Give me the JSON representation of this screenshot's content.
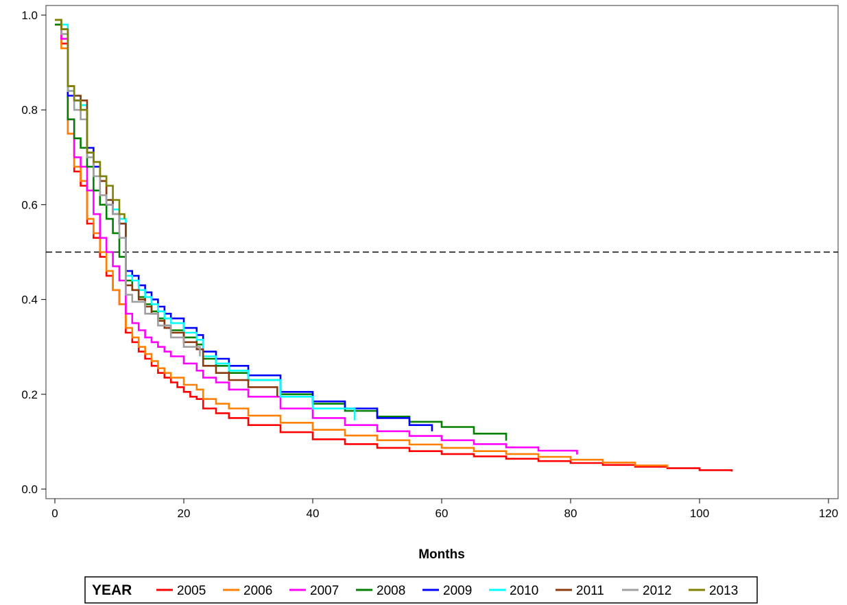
{
  "chart_data": {
    "type": "line",
    "step": true,
    "xlabel": "Months",
    "ylabel": "",
    "xlim": [
      0,
      120
    ],
    "ylim": [
      0,
      1
    ],
    "x_ticks": [
      0,
      20,
      40,
      60,
      80,
      100,
      120
    ],
    "y_ticks": [
      0.0,
      0.2,
      0.4,
      0.6,
      0.8,
      1.0
    ],
    "x_tick_labels": [
      "0",
      "20",
      "40",
      "60",
      "80",
      "100",
      "120"
    ],
    "y_tick_labels": [
      "0.0",
      "0.2",
      "0.4",
      "0.6",
      "0.8",
      "1.0"
    ],
    "grid": false,
    "reference_line": {
      "y": 0.5,
      "style": "dashed",
      "color": "#000000"
    },
    "legend": {
      "title": "YEAR",
      "position": "bottom"
    },
    "series": [
      {
        "name": "2005",
        "color": "#FF0000",
        "x": [
          0,
          1,
          2,
          3,
          4,
          5,
          6,
          7,
          8,
          9,
          10,
          11,
          12,
          13,
          14,
          15,
          16,
          17,
          18,
          19,
          20,
          21,
          22,
          23,
          25,
          27,
          30,
          35,
          40,
          45,
          50,
          55,
          60,
          65,
          70,
          75,
          80,
          85,
          90,
          95,
          100,
          105
        ],
        "y": [
          0.98,
          0.94,
          0.75,
          0.67,
          0.64,
          0.56,
          0.53,
          0.49,
          0.45,
          0.42,
          0.39,
          0.33,
          0.31,
          0.29,
          0.275,
          0.26,
          0.245,
          0.235,
          0.225,
          0.215,
          0.205,
          0.195,
          0.19,
          0.17,
          0.16,
          0.15,
          0.135,
          0.12,
          0.105,
          0.095,
          0.087,
          0.08,
          0.074,
          0.069,
          0.064,
          0.059,
          0.055,
          0.051,
          0.047,
          0.044,
          0.04,
          0.037
        ]
      },
      {
        "name": "2006",
        "color": "#FF7F00",
        "x": [
          0,
          1,
          2,
          3,
          4,
          5,
          6,
          7,
          8,
          9,
          10,
          11,
          12,
          13,
          14,
          15,
          16,
          17,
          18,
          20,
          22,
          23,
          25,
          27,
          30,
          35,
          40,
          45,
          50,
          55,
          60,
          65,
          70,
          75,
          80,
          85,
          90,
          95
        ],
        "y": [
          0.98,
          0.93,
          0.75,
          0.68,
          0.65,
          0.57,
          0.54,
          0.5,
          0.46,
          0.42,
          0.39,
          0.34,
          0.32,
          0.3,
          0.285,
          0.27,
          0.255,
          0.245,
          0.235,
          0.22,
          0.21,
          0.19,
          0.18,
          0.17,
          0.155,
          0.14,
          0.125,
          0.113,
          0.103,
          0.094,
          0.087,
          0.08,
          0.074,
          0.068,
          0.062,
          0.056,
          0.05,
          0.045
        ]
      },
      {
        "name": "2007",
        "color": "#FF00FF",
        "x": [
          0,
          1,
          2,
          3,
          4,
          5,
          6,
          7,
          8,
          9,
          10,
          11,
          12,
          13,
          14,
          15,
          16,
          17,
          18,
          20,
          22,
          23,
          25,
          27,
          30,
          35,
          40,
          45,
          50,
          55,
          60,
          65,
          70,
          75,
          81
        ],
        "y": [
          0.98,
          0.95,
          0.78,
          0.7,
          0.68,
          0.63,
          0.58,
          0.53,
          0.5,
          0.47,
          0.44,
          0.37,
          0.35,
          0.335,
          0.32,
          0.31,
          0.3,
          0.29,
          0.28,
          0.265,
          0.25,
          0.235,
          0.225,
          0.21,
          0.195,
          0.17,
          0.15,
          0.135,
          0.122,
          0.112,
          0.103,
          0.095,
          0.088,
          0.081,
          0.073
        ]
      },
      {
        "name": "2008",
        "color": "#008000",
        "x": [
          0,
          1,
          2,
          3,
          4,
          5,
          6,
          7,
          8,
          9,
          10,
          11,
          12,
          13,
          14,
          15,
          16,
          17,
          18,
          20,
          22,
          23,
          25,
          27,
          30,
          35,
          40,
          45,
          50,
          55,
          60,
          65,
          70
        ],
        "y": [
          0.98,
          0.97,
          0.78,
          0.74,
          0.72,
          0.68,
          0.63,
          0.6,
          0.57,
          0.54,
          0.49,
          0.44,
          0.42,
          0.405,
          0.39,
          0.375,
          0.36,
          0.345,
          0.335,
          0.32,
          0.305,
          0.275,
          0.26,
          0.245,
          0.23,
          0.2,
          0.18,
          0.165,
          0.153,
          0.142,
          0.131,
          0.117,
          0.102
        ]
      },
      {
        "name": "2009",
        "color": "#0000FF",
        "x": [
          0,
          1,
          2,
          3,
          4,
          5,
          6,
          7,
          8,
          9,
          10,
          11,
          12,
          13,
          14,
          15,
          16,
          17,
          18,
          20,
          22,
          23,
          25,
          27,
          30,
          35,
          40,
          45,
          50,
          55,
          58.5
        ],
        "y": [
          0.99,
          0.97,
          0.83,
          0.82,
          0.8,
          0.72,
          0.68,
          0.65,
          0.6,
          0.58,
          0.56,
          0.46,
          0.45,
          0.43,
          0.415,
          0.4,
          0.385,
          0.37,
          0.36,
          0.34,
          0.325,
          0.29,
          0.275,
          0.26,
          0.24,
          0.205,
          0.185,
          0.17,
          0.15,
          0.135,
          0.122
        ]
      },
      {
        "name": "2010",
        "color": "#00FFFF",
        "x": [
          0,
          1,
          2,
          3,
          4,
          5,
          6,
          7,
          8,
          9,
          10,
          11,
          12,
          13,
          14,
          15,
          16,
          17,
          18,
          20,
          22,
          23,
          25,
          27,
          30,
          35,
          40,
          46.5
        ],
        "y": [
          0.99,
          0.98,
          0.84,
          0.83,
          0.81,
          0.71,
          0.69,
          0.66,
          0.61,
          0.59,
          0.57,
          0.45,
          0.44,
          0.42,
          0.405,
          0.39,
          0.375,
          0.36,
          0.35,
          0.33,
          0.315,
          0.28,
          0.265,
          0.25,
          0.23,
          0.195,
          0.17,
          0.145
        ]
      },
      {
        "name": "2011",
        "color": "#8B3A0E",
        "x": [
          0,
          1,
          2,
          3,
          4,
          5,
          6,
          7,
          8,
          9,
          10,
          11,
          12,
          13,
          14,
          15,
          16,
          17,
          18,
          20,
          22,
          23,
          25,
          27,
          30,
          34.5
        ],
        "y": [
          0.99,
          0.97,
          0.85,
          0.83,
          0.82,
          0.71,
          0.69,
          0.65,
          0.61,
          0.58,
          0.56,
          0.43,
          0.42,
          0.4,
          0.385,
          0.37,
          0.355,
          0.34,
          0.33,
          0.31,
          0.295,
          0.26,
          0.245,
          0.23,
          0.215,
          0.195
        ]
      },
      {
        "name": "2012",
        "color": "#A0A0A0",
        "x": [
          0,
          1,
          2,
          3,
          4,
          5,
          6,
          7,
          8,
          9,
          10,
          11,
          12,
          14,
          16,
          18,
          20,
          22.5
        ],
        "y": [
          0.99,
          0.96,
          0.84,
          0.8,
          0.78,
          0.7,
          0.66,
          0.62,
          0.6,
          0.58,
          0.53,
          0.41,
          0.395,
          0.37,
          0.345,
          0.32,
          0.3,
          0.28
        ]
      },
      {
        "name": "2013",
        "color": "#808000",
        "x": [
          0,
          1,
          2,
          3,
          4,
          5,
          6,
          7,
          8,
          9,
          10,
          10.8
        ],
        "y": [
          0.99,
          0.97,
          0.85,
          0.82,
          0.8,
          0.71,
          0.69,
          0.66,
          0.64,
          0.61,
          0.58,
          0.57
        ]
      }
    ]
  }
}
